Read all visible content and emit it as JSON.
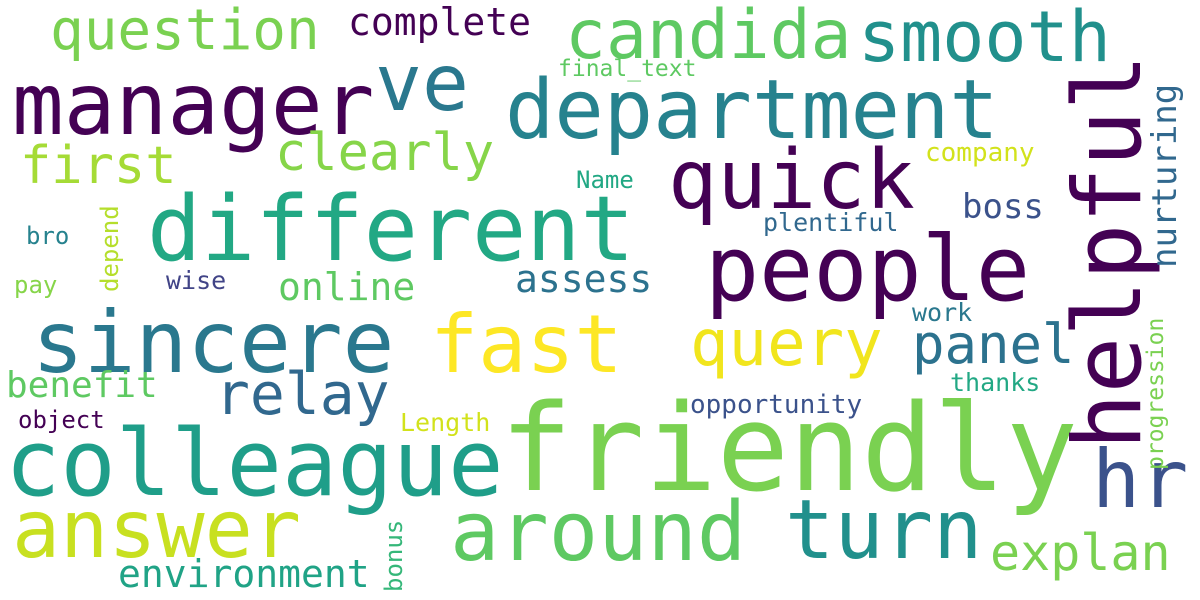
{
  "palette": {
    "dark_purple": "#440154",
    "indigo": "#3b528b",
    "blue": "#31688e",
    "teal": "#21908c",
    "green": "#35b779",
    "lime": "#7ad151",
    "yellow_green": "#b5de2b",
    "yellow": "#fde725"
  },
  "words": [
    {
      "text": "friendly",
      "color": "#7ad151"
    },
    {
      "text": "department",
      "color": "#26828e"
    },
    {
      "text": "different",
      "color": "#22a884"
    },
    {
      "text": "people",
      "color": "#440154"
    },
    {
      "text": "colleague",
      "color": "#1f9e89"
    },
    {
      "text": "sincere",
      "color": "#2a788e"
    },
    {
      "text": "manager",
      "color": "#440154"
    },
    {
      "text": "helpful",
      "color": "#440154"
    },
    {
      "text": "around",
      "color": "#5ec962"
    },
    {
      "text": "turn",
      "color": "#21908c"
    },
    {
      "text": "answer",
      "color": "#c8e020"
    },
    {
      "text": "quick",
      "color": "#440154"
    },
    {
      "text": "fast",
      "color": "#fde725"
    },
    {
      "text": "hr",
      "color": "#3b528b"
    },
    {
      "text": "candida",
      "color": "#5ec962"
    },
    {
      "text": "smooth",
      "color": "#21908c"
    },
    {
      "text": "ve",
      "color": "#2a788e"
    },
    {
      "text": "query",
      "color": "#f1e51d"
    },
    {
      "text": "question",
      "color": "#7ad151"
    },
    {
      "text": "relay",
      "color": "#31688e"
    },
    {
      "text": "panel",
      "color": "#2c728e"
    },
    {
      "text": "explan",
      "color": "#7ad151"
    },
    {
      "text": "clearly",
      "color": "#86d549"
    },
    {
      "text": "first",
      "color": "#a5db36"
    },
    {
      "text": "nurturing",
      "color": "#31688e"
    },
    {
      "text": "environment",
      "color": "#20a386"
    },
    {
      "text": "complete",
      "color": "#440154"
    },
    {
      "text": "online",
      "color": "#5ec962"
    },
    {
      "text": "assess",
      "color": "#2c728e"
    },
    {
      "text": "benefit",
      "color": "#5ec962"
    },
    {
      "text": "boss",
      "color": "#3b528b"
    },
    {
      "text": "progression",
      "color": "#7ad151"
    },
    {
      "text": "opportunity",
      "color": "#3b528b"
    },
    {
      "text": "final_text",
      "color": "#5ec962"
    },
    {
      "text": "company",
      "color": "#d2e21b"
    },
    {
      "text": "Name",
      "color": "#22a884"
    },
    {
      "text": "plentiful",
      "color": "#31688e"
    },
    {
      "text": "wise",
      "color": "#414487"
    },
    {
      "text": "work",
      "color": "#2a788e"
    },
    {
      "text": "thanks",
      "color": "#22a884"
    },
    {
      "text": "Length",
      "color": "#d2e21b"
    },
    {
      "text": "object",
      "color": "#440154"
    },
    {
      "text": "bro",
      "color": "#26828e"
    },
    {
      "text": "pay",
      "color": "#86d549"
    },
    {
      "text": "depend",
      "color": "#b5de2b"
    },
    {
      "text": "bonus",
      "color": "#35b779"
    }
  ]
}
